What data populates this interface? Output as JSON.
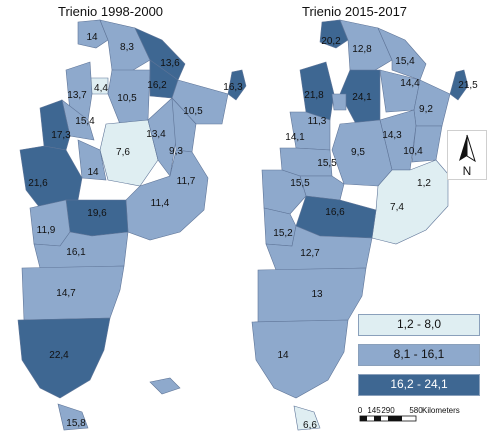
{
  "maps": [
    {
      "title": "Trienio 1998-2000",
      "labels": [
        "14",
        "8,3",
        "13,6",
        "16,3",
        "4,4",
        "13,7",
        "10,5",
        "16,2",
        "10,5",
        "15,4",
        "17,3",
        "7,6",
        "13,4",
        "9,3",
        "14",
        "21,6",
        "11,7",
        "19,6",
        "11,4",
        "11,9",
        "16,1",
        "14,7",
        "22,4",
        "15,8"
      ]
    },
    {
      "title": "Trienio 2015-2017",
      "labels": [
        "20,2",
        "12,8",
        "15,4",
        "21,5",
        "21,8",
        "24,1",
        "14,4",
        "9,2",
        "11,3",
        "14,1",
        "14,3",
        "10,4",
        "15,5",
        "9,5",
        "15,5",
        "1,2",
        "7,4",
        "16,6",
        "15,2",
        "12,7",
        "13",
        "14",
        "6,6"
      ]
    }
  ],
  "legend": [
    {
      "label": "1,2 - 8,0",
      "color": "#dfeef2"
    },
    {
      "label": "8,1 - 16,1",
      "color": "#8ea9cc"
    },
    {
      "label": "16,2 - 24,1",
      "color": "#3e6792"
    }
  ],
  "scale": {
    "ticks": [
      "0",
      "145",
      "290",
      "580"
    ],
    "unit": "Kilometers"
  },
  "north_label": "N"
}
